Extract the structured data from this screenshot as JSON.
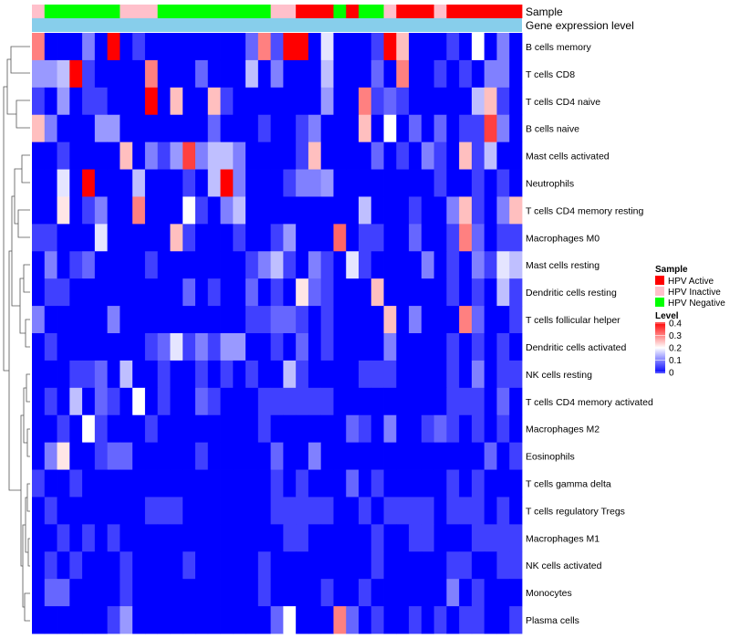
{
  "chart_data": {
    "type": "heatmap",
    "annotation_tracks": [
      "Sample",
      "Gene expression level"
    ],
    "sample_groups": [
      {
        "label": "HPV Active",
        "color": "#ff0000"
      },
      {
        "label": "HPV Inactive",
        "color": "#ffc0cb"
      },
      {
        "label": "HPV Negative",
        "color": "#00ff00"
      }
    ],
    "column_samples": [
      1,
      2,
      2,
      2,
      2,
      2,
      2,
      1,
      1,
      1,
      2,
      2,
      2,
      2,
      2,
      2,
      2,
      2,
      2,
      1,
      1,
      0,
      0,
      0,
      2,
      0,
      2,
      2,
      1,
      0,
      0,
      0,
      1,
      0,
      0,
      0,
      0,
      0,
      0
    ],
    "expression_level_color": "#87ceeb",
    "legend_titles": {
      "sample": "Sample",
      "level": "Level"
    },
    "level_scale": {
      "min": 0,
      "max": 0.4,
      "ticks": [
        "0.4",
        "0.3",
        "0.2",
        "0.1",
        "0"
      ],
      "colors": [
        "#0000ff",
        "#ffffff",
        "#ff0000"
      ]
    },
    "rows": [
      "B cells memory",
      "T cells CD8",
      "T cells CD4 naive",
      "B cells naive",
      "Mast cells activated",
      "Neutrophils",
      "T cells CD4 memory resting",
      "Macrophages M0",
      "Mast cells resting",
      "Dendritic cells resting",
      "T cells follicular helper",
      "Dendritic cells activated",
      "NK cells resting",
      "T cells CD4 memory activated",
      "Macrophages M2",
      "Eosinophils",
      "T cells gamma delta",
      "T cells regulatory  Tregs",
      "Macrophages M1",
      "NK cells activated",
      "Monocytes",
      "Plasma cells"
    ],
    "values": [
      [
        0.3,
        0.0,
        0.0,
        0.0,
        0.1,
        0.0,
        0.4,
        0.0,
        0.05,
        0.0,
        0.0,
        0.0,
        0.0,
        0.0,
        0.0,
        0.0,
        0.0,
        0.08,
        0.3,
        0.06,
        0.4,
        0.4,
        0.0,
        0.18,
        0.0,
        0.0,
        0.0,
        0.05,
        0.4,
        0.25,
        0.0,
        0.0,
        0.0,
        0.05,
        0.0,
        0.2,
        0.0,
        0.1,
        0.0
      ],
      [
        0.12,
        0.12,
        0.15,
        0.4,
        0.05,
        0.0,
        0.0,
        0.0,
        0.0,
        0.3,
        0.0,
        0.0,
        0.0,
        0.08,
        0.0,
        0.0,
        0.0,
        0.15,
        0.0,
        0.1,
        0.0,
        0.0,
        0.0,
        0.15,
        0.0,
        0.0,
        0.0,
        0.08,
        0.0,
        0.3,
        0.0,
        0.0,
        0.05,
        0.0,
        0.05,
        0.0,
        0.1,
        0.1,
        0.0
      ],
      [
        0.05,
        0.0,
        0.12,
        0.0,
        0.05,
        0.05,
        0.0,
        0.0,
        0.0,
        0.4,
        0.0,
        0.25,
        0.0,
        0.0,
        0.25,
        0.05,
        0.0,
        0.0,
        0.0,
        0.0,
        0.0,
        0.0,
        0.0,
        0.12,
        0.0,
        0.0,
        0.3,
        0.05,
        0.08,
        0.05,
        0.0,
        0.0,
        0.0,
        0.0,
        0.0,
        0.15,
        0.25,
        0.05,
        0.0
      ],
      [
        0.25,
        0.1,
        0.0,
        0.0,
        0.0,
        0.12,
        0.12,
        0.0,
        0.0,
        0.0,
        0.0,
        0.0,
        0.0,
        0.0,
        0.08,
        0.0,
        0.0,
        0.0,
        0.05,
        0.0,
        0.0,
        0.05,
        0.1,
        0.0,
        0.0,
        0.0,
        0.25,
        0.0,
        0.2,
        0.0,
        0.08,
        0.0,
        0.08,
        0.0,
        0.05,
        0.05,
        0.35,
        0.1,
        0.0
      ],
      [
        0.0,
        0.0,
        0.05,
        0.0,
        0.0,
        0.0,
        0.0,
        0.25,
        0.0,
        0.1,
        0.05,
        0.12,
        0.35,
        0.1,
        0.15,
        0.15,
        0.1,
        0.0,
        0.0,
        0.0,
        0.0,
        0.05,
        0.25,
        0.0,
        0.0,
        0.0,
        0.0,
        0.08,
        0.0,
        0.05,
        0.0,
        0.1,
        0.05,
        0.0,
        0.25,
        0.05,
        0.15,
        0.0,
        0.0
      ],
      [
        0.0,
        0.0,
        0.18,
        0.0,
        0.4,
        0.0,
        0.0,
        0.0,
        0.15,
        0.0,
        0.0,
        0.0,
        0.05,
        0.0,
        0.15,
        0.4,
        0.1,
        0.0,
        0.0,
        0.0,
        0.05,
        0.1,
        0.1,
        0.12,
        0.0,
        0.0,
        0.0,
        0.0,
        0.0,
        0.0,
        0.0,
        0.0,
        0.05,
        0.0,
        0.0,
        0.05,
        0.0,
        0.05,
        0.0
      ],
      [
        0.0,
        0.0,
        0.22,
        0.0,
        0.05,
        0.1,
        0.0,
        0.0,
        0.3,
        0.0,
        0.0,
        0.0,
        0.2,
        0.05,
        0.0,
        0.1,
        0.15,
        0.0,
        0.0,
        0.0,
        0.0,
        0.0,
        0.0,
        0.0,
        0.0,
        0.0,
        0.15,
        0.0,
        0.0,
        0.0,
        0.05,
        0.0,
        0.0,
        0.1,
        0.25,
        0.05,
        0.0,
        0.1,
        0.25
      ],
      [
        0.05,
        0.05,
        0.0,
        0.0,
        0.0,
        0.18,
        0.0,
        0.0,
        0.0,
        0.0,
        0.0,
        0.25,
        0.05,
        0.0,
        0.0,
        0.0,
        0.05,
        0.0,
        0.0,
        0.05,
        0.12,
        0.0,
        0.0,
        0.0,
        0.32,
        0.0,
        0.05,
        0.05,
        0.0,
        0.0,
        0.08,
        0.0,
        0.0,
        0.05,
        0.3,
        0.08,
        0.0,
        0.05,
        0.05
      ],
      [
        0.0,
        0.1,
        0.0,
        0.05,
        0.08,
        0.0,
        0.0,
        0.0,
        0.0,
        0.05,
        0.0,
        0.0,
        0.0,
        0.0,
        0.0,
        0.0,
        0.0,
        0.05,
        0.1,
        0.15,
        0.05,
        0.0,
        0.1,
        0.05,
        0.0,
        0.18,
        0.05,
        0.0,
        0.0,
        0.0,
        0.0,
        0.1,
        0.0,
        0.05,
        0.0,
        0.1,
        0.05,
        0.18,
        0.15
      ],
      [
        0.0,
        0.05,
        0.05,
        0.0,
        0.0,
        0.0,
        0.0,
        0.0,
        0.0,
        0.0,
        0.0,
        0.0,
        0.08,
        0.0,
        0.05,
        0.0,
        0.0,
        0.08,
        0.0,
        0.05,
        0.0,
        0.22,
        0.08,
        0.05,
        0.0,
        0.0,
        0.0,
        0.25,
        0.0,
        0.0,
        0.0,
        0.0,
        0.0,
        0.05,
        0.0,
        0.05,
        0.0,
        0.15,
        0.05
      ],
      [
        0.1,
        0.0,
        0.0,
        0.0,
        0.0,
        0.0,
        0.1,
        0.0,
        0.0,
        0.0,
        0.0,
        0.0,
        0.0,
        0.0,
        0.0,
        0.0,
        0.0,
        0.05,
        0.05,
        0.08,
        0.08,
        0.05,
        0.0,
        0.05,
        0.0,
        0.0,
        0.0,
        0.0,
        0.25,
        0.0,
        0.1,
        0.0,
        0.0,
        0.0,
        0.3,
        0.08,
        0.0,
        0.0,
        0.05
      ],
      [
        0.0,
        0.05,
        0.0,
        0.0,
        0.0,
        0.0,
        0.0,
        0.0,
        0.0,
        0.05,
        0.08,
        0.18,
        0.05,
        0.1,
        0.05,
        0.12,
        0.12,
        0.0,
        0.0,
        0.05,
        0.0,
        0.08,
        0.0,
        0.05,
        0.0,
        0.0,
        0.0,
        0.0,
        0.1,
        0.0,
        0.0,
        0.0,
        0.0,
        0.05,
        0.0,
        0.05,
        0.0,
        0.05,
        0.0
      ],
      [
        0.0,
        0.0,
        0.0,
        0.05,
        0.05,
        0.08,
        0.0,
        0.15,
        0.0,
        0.0,
        0.05,
        0.0,
        0.0,
        0.05,
        0.0,
        0.05,
        0.0,
        0.05,
        0.0,
        0.0,
        0.15,
        0.05,
        0.0,
        0.0,
        0.0,
        0.0,
        0.05,
        0.05,
        0.05,
        0.0,
        0.0,
        0.0,
        0.0,
        0.05,
        0.0,
        0.1,
        0.0,
        0.05,
        0.05
      ],
      [
        0.0,
        0.05,
        0.0,
        0.15,
        0.0,
        0.08,
        0.05,
        0.0,
        0.2,
        0.0,
        0.05,
        0.0,
        0.0,
        0.08,
        0.05,
        0.0,
        0.0,
        0.0,
        0.05,
        0.05,
        0.05,
        0.05,
        0.05,
        0.05,
        0.0,
        0.0,
        0.0,
        0.0,
        0.0,
        0.0,
        0.0,
        0.0,
        0.0,
        0.05,
        0.05,
        0.05,
        0.0,
        0.08,
        0.0
      ],
      [
        0.0,
        0.0,
        0.05,
        0.0,
        0.2,
        0.05,
        0.0,
        0.0,
        0.0,
        0.05,
        0.0,
        0.0,
        0.0,
        0.0,
        0.0,
        0.0,
        0.0,
        0.0,
        0.05,
        0.0,
        0.0,
        0.0,
        0.0,
        0.0,
        0.0,
        0.08,
        0.05,
        0.0,
        0.1,
        0.0,
        0.0,
        0.05,
        0.08,
        0.05,
        0.0,
        0.05,
        0.0,
        0.05,
        0.0
      ],
      [
        0.0,
        0.1,
        0.22,
        0.0,
        0.0,
        0.05,
        0.08,
        0.08,
        0.0,
        0.0,
        0.0,
        0.0,
        0.0,
        0.05,
        0.0,
        0.0,
        0.0,
        0.0,
        0.0,
        0.08,
        0.0,
        0.0,
        0.1,
        0.0,
        0.0,
        0.0,
        0.0,
        0.0,
        0.0,
        0.0,
        0.0,
        0.0,
        0.0,
        0.0,
        0.0,
        0.0,
        0.08,
        0.0,
        0.05
      ],
      [
        0.05,
        0.0,
        0.0,
        0.05,
        0.0,
        0.0,
        0.0,
        0.0,
        0.0,
        0.0,
        0.0,
        0.0,
        0.0,
        0.0,
        0.0,
        0.0,
        0.0,
        0.0,
        0.0,
        0.05,
        0.0,
        0.05,
        0.0,
        0.0,
        0.0,
        0.08,
        0.0,
        0.05,
        0.0,
        0.0,
        0.0,
        0.0,
        0.0,
        0.05,
        0.0,
        0.05,
        0.0,
        0.0,
        0.0
      ],
      [
        0.0,
        0.05,
        0.0,
        0.0,
        0.0,
        0.0,
        0.0,
        0.0,
        0.0,
        0.05,
        0.05,
        0.05,
        0.0,
        0.0,
        0.0,
        0.0,
        0.0,
        0.0,
        0.0,
        0.05,
        0.05,
        0.05,
        0.05,
        0.05,
        0.0,
        0.0,
        0.05,
        0.0,
        0.05,
        0.05,
        0.05,
        0.05,
        0.0,
        0.05,
        0.05,
        0.05,
        0.0,
        0.05,
        0.0
      ],
      [
        0.0,
        0.0,
        0.05,
        0.0,
        0.05,
        0.0,
        0.05,
        0.0,
        0.0,
        0.0,
        0.0,
        0.0,
        0.0,
        0.0,
        0.0,
        0.0,
        0.0,
        0.0,
        0.0,
        0.0,
        0.05,
        0.05,
        0.0,
        0.0,
        0.0,
        0.0,
        0.0,
        0.05,
        0.0,
        0.0,
        0.05,
        0.05,
        0.0,
        0.0,
        0.0,
        0.05,
        0.05,
        0.05,
        0.05
      ],
      [
        0.0,
        0.05,
        0.0,
        0.05,
        0.0,
        0.0,
        0.0,
        0.05,
        0.0,
        0.0,
        0.0,
        0.0,
        0.05,
        0.0,
        0.0,
        0.0,
        0.0,
        0.0,
        0.05,
        0.0,
        0.0,
        0.0,
        0.0,
        0.0,
        0.0,
        0.0,
        0.0,
        0.05,
        0.0,
        0.0,
        0.0,
        0.0,
        0.0,
        0.05,
        0.05,
        0.0,
        0.0,
        0.05,
        0.05
      ],
      [
        0.0,
        0.08,
        0.08,
        0.0,
        0.0,
        0.0,
        0.0,
        0.05,
        0.0,
        0.0,
        0.0,
        0.0,
        0.0,
        0.0,
        0.0,
        0.0,
        0.0,
        0.0,
        0.05,
        0.0,
        0.0,
        0.0,
        0.0,
        0.05,
        0.0,
        0.0,
        0.05,
        0.0,
        0.0,
        0.0,
        0.0,
        0.0,
        0.0,
        0.1,
        0.0,
        0.05,
        0.0,
        0.0,
        0.0
      ],
      [
        0.0,
        0.0,
        0.0,
        0.0,
        0.0,
        0.0,
        0.05,
        0.12,
        0.0,
        0.0,
        0.0,
        0.0,
        0.0,
        0.0,
        0.0,
        0.0,
        0.0,
        0.0,
        0.0,
        0.08,
        0.2,
        0.0,
        0.0,
        0.0,
        0.3,
        0.08,
        0.0,
        0.05,
        0.0,
        0.0,
        0.05,
        0.0,
        0.05,
        0.0,
        0.05,
        0.05,
        0.0,
        0.0,
        0.05
      ]
    ]
  }
}
